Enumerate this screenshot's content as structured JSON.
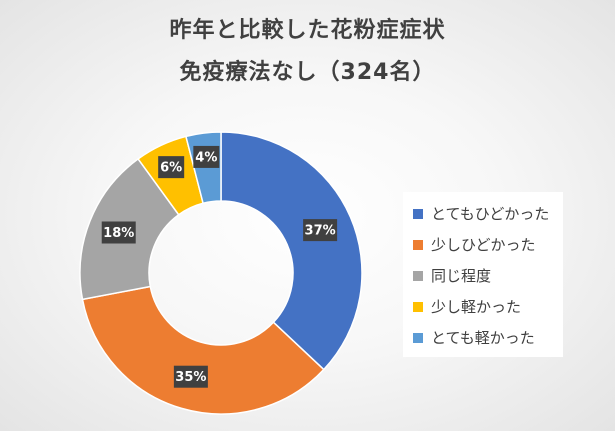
{
  "chart_data": {
    "type": "pie",
    "donut": true,
    "title": "昨年と比較した花粉症症状",
    "subtitle": "免疫療法なし（324名）",
    "categories": [
      "とてもひどかった",
      "少しひどかった",
      "同じ程度",
      "少し軽かった",
      "とても軽かった"
    ],
    "values": [
      37,
      35,
      18,
      6,
      4
    ],
    "data_labels": [
      "37%",
      "35%",
      "18%",
      "6%",
      "4%"
    ],
    "colors": [
      "#4472C4",
      "#ED7D31",
      "#A5A5A5",
      "#FFC000",
      "#5B9BD5"
    ],
    "legend_position": "right"
  }
}
